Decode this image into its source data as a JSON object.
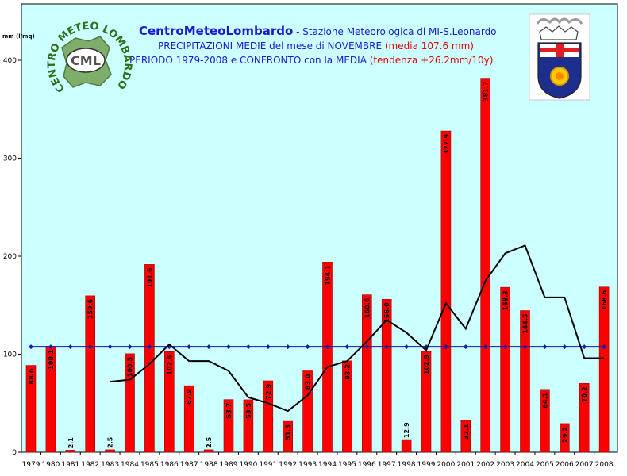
{
  "title": {
    "brand": "CentroMeteoLombardo",
    "station": " - Stazione Meteorologica di MI-S.Leonardo",
    "line2": "PRECIPITAZIONI MEDIE del mese di NOVEMBRE",
    "line2_red": " (media 107.6 mm)",
    "line3": "PERIODO 1979-2008 e CONFRONTO con la MEDIA",
    "line3_red": " (tendenza +26.2mm/10y)"
  },
  "logo": {
    "ring_text": "CENTRO METEO LOMBARDO",
    "abbr": "CML"
  },
  "colors": {
    "plot_bg": "#ccffff",
    "bar": "#ff0000",
    "mean_line": "#1a1aa6",
    "trend_line": "#000000"
  },
  "chart_data": {
    "type": "bar",
    "ylabel": "mm (l/mq)",
    "ylim": [
      0,
      430
    ],
    "yticks": [
      0,
      100,
      200,
      300,
      400
    ],
    "grid": false,
    "categories": [
      "1979",
      "1980",
      "1981",
      "1982",
      "1983",
      "1984",
      "1985",
      "1986",
      "1987",
      "1988",
      "1989",
      "1990",
      "1991",
      "1992",
      "1993",
      "1994",
      "1995",
      "1996",
      "1997",
      "1998",
      "1999",
      "2000",
      "2001",
      "2002",
      "2003",
      "2004",
      "2005",
      "2006",
      "2007",
      "2008"
    ],
    "series": [
      {
        "kind": "bar",
        "values": [
          88.6,
          108.1,
          2.1,
          159.6,
          2.5,
          100.5,
          191.6,
          102.6,
          67.9,
          2.5,
          53.7,
          53.5,
          72.9,
          31.5,
          83.0,
          194.1,
          93.2,
          160.6,
          156.0,
          12.9,
          102.9,
          327.9,
          32.1,
          381.7,
          168.3,
          144.5,
          64.1,
          29.2,
          70.2,
          168.6
        ],
        "labels": [
          "88.6",
          "108.1",
          "2.1",
          "159.6",
          "2.5",
          "100.5",
          "191.6",
          "102.6",
          "67.9",
          "2.5",
          "53.7",
          "53.5",
          "72.9",
          "31.5",
          "83.0",
          "194.1",
          "93.2",
          "160.6",
          "156.0",
          "12.9",
          "102.9",
          "327.9",
          "32.1",
          "381.7",
          "168.3",
          "144.5",
          "64.1",
          "29.2",
          "70.2",
          "168.6"
        ]
      },
      {
        "kind": "mean",
        "value": 107.6
      },
      {
        "kind": "moving-average",
        "values": [
          null,
          null,
          null,
          null,
          72,
          74,
          90,
          110,
          93,
          93,
          83,
          56,
          50,
          42,
          58,
          87,
          93,
          113,
          135,
          122,
          104,
          152,
          126,
          175,
          203,
          211,
          158,
          158,
          96,
          96
        ]
      }
    ]
  }
}
